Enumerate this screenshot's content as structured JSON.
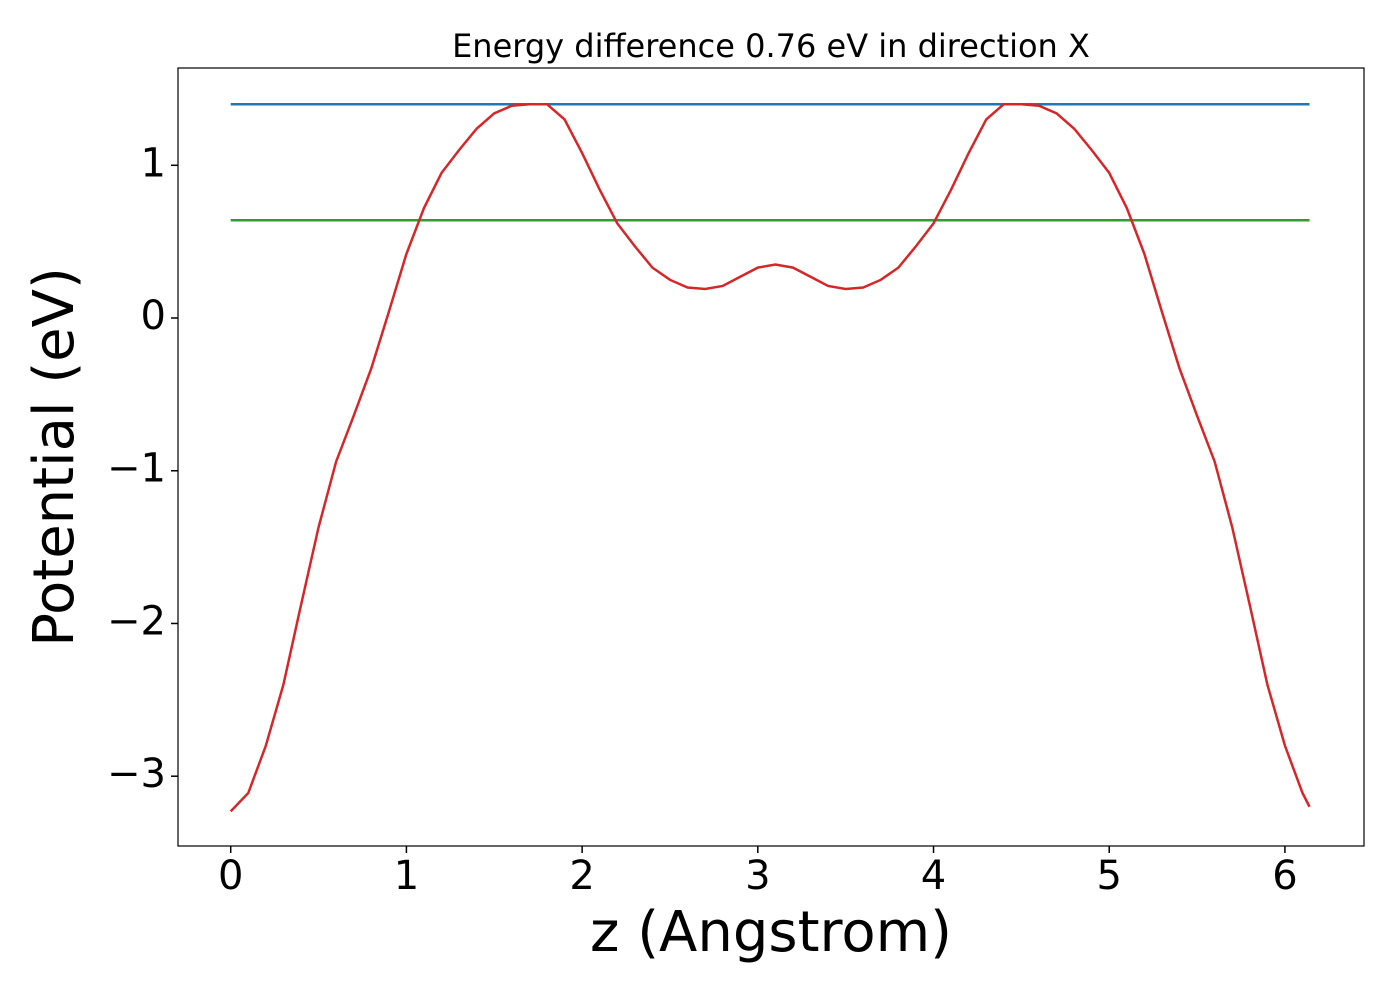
{
  "chart_data": {
    "type": "line",
    "title": "Energy difference 0.76 eV in direction X",
    "x_label": "z (Angstrom)",
    "y_label": "Potential (eV)",
    "xlim": [
      -0.3,
      6.45
    ],
    "ylim": [
      -3.457,
      1.637
    ],
    "xticks": [
      0,
      1,
      2,
      3,
      4,
      5,
      6
    ],
    "yticks": [
      {
        "value": -3,
        "label": "−3"
      },
      {
        "value": -2,
        "label": "−2"
      },
      {
        "value": -1,
        "label": "−1"
      },
      0,
      1
    ],
    "series": [
      {
        "color": "#1f77b4",
        "x": [
          0,
          6.14
        ],
        "values": [
          1.4,
          1.4
        ]
      },
      {
        "color": "#2ca02c",
        "x": [
          0,
          6.14
        ],
        "values": [
          0.64,
          0.64
        ]
      },
      {
        "color": "#d62728",
        "x": [
          0,
          0.1,
          0.2,
          0.3,
          0.4,
          0.5,
          0.6,
          0.7,
          0.8,
          0.9,
          1.0,
          1.1,
          1.2,
          1.3,
          1.4,
          1.5,
          1.6,
          1.7,
          1.8,
          1.9,
          2.0,
          2.1,
          2.2,
          2.3,
          2.4,
          2.5,
          2.6,
          2.7,
          2.8,
          2.9,
          3.0,
          3.1,
          3.2,
          3.3,
          3.4,
          3.5,
          3.6,
          3.7,
          3.8,
          3.9,
          4.0,
          4.1,
          4.2,
          4.3,
          4.4,
          4.5,
          4.6,
          4.7,
          4.8,
          4.9,
          5.0,
          5.1,
          5.2,
          5.3,
          5.4,
          5.5,
          5.6,
          5.7,
          5.8,
          5.9,
          6.0,
          6.1,
          6.14
        ],
        "values": [
          -3.23,
          -3.11,
          -2.8,
          -2.4,
          -1.88,
          -1.37,
          -0.94,
          -0.64,
          -0.33,
          0.04,
          0.42,
          0.72,
          0.95,
          1.1,
          1.24,
          1.34,
          1.39,
          1.4,
          1.4,
          1.3,
          1.08,
          0.84,
          0.62,
          0.47,
          0.33,
          0.25,
          0.2,
          0.19,
          0.21,
          0.27,
          0.33,
          0.35,
          0.33,
          0.27,
          0.21,
          0.19,
          0.2,
          0.25,
          0.33,
          0.47,
          0.62,
          0.84,
          1.08,
          1.3,
          1.4,
          1.4,
          1.39,
          1.34,
          1.24,
          1.1,
          0.95,
          0.72,
          0.42,
          0.04,
          -0.33,
          -0.64,
          -0.94,
          -1.37,
          -1.88,
          -2.4,
          -2.8,
          -3.11,
          -3.2
        ]
      }
    ]
  }
}
